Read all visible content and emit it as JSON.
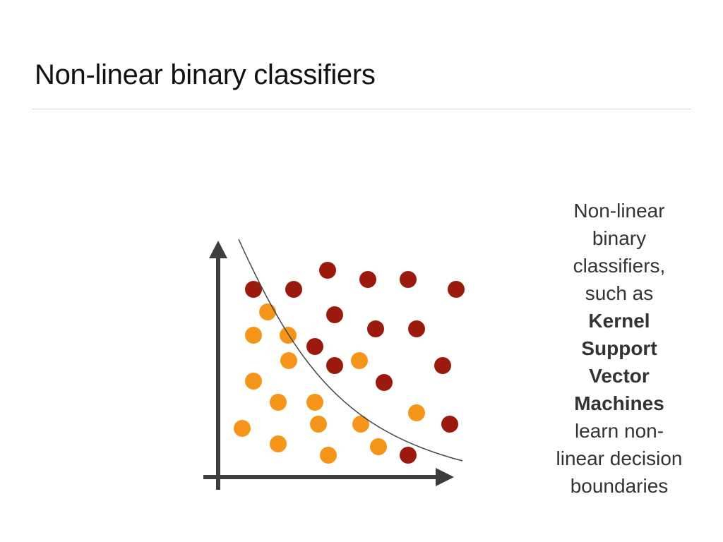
{
  "title": "Non-linear binary classifiers",
  "description": {
    "lines": [
      {
        "text": "Non-linear",
        "bold": false
      },
      {
        "text": "binary",
        "bold": false
      },
      {
        "text": "classifiers,",
        "bold": false
      },
      {
        "text": "such as",
        "bold": false
      },
      {
        "text": "Kernel",
        "bold": true
      },
      {
        "text": "Support",
        "bold": true
      },
      {
        "text": "Vector",
        "bold": true
      },
      {
        "text": "Machines",
        "bold": true
      },
      {
        "text": "learn non-",
        "bold": false
      },
      {
        "text": "linear decision",
        "bold": false
      },
      {
        "text": "boundaries",
        "bold": false
      }
    ]
  },
  "colors": {
    "class_a": "#9b1a0d",
    "class_b": "#f5961a",
    "axis": "#3d3d3d",
    "boundary": "#444444"
  }
}
